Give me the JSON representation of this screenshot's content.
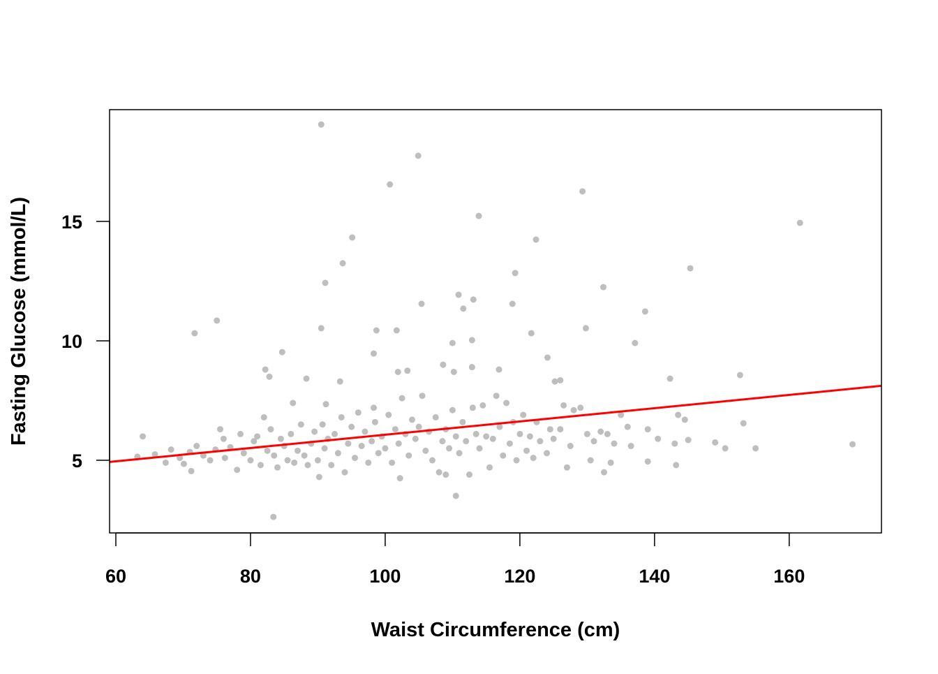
{
  "chart_data": {
    "type": "scatter",
    "title": "",
    "xlabel": "Waist Circumference (cm)",
    "ylabel": "Fasting Glucose (mmol/L)",
    "xlim": [
      59.07,
      173.7
    ],
    "ylim": [
      1.96,
      19.68
    ],
    "xticks": [
      60,
      80,
      100,
      120,
      140,
      160
    ],
    "yticks": [
      5,
      10,
      15
    ],
    "grid": false,
    "point_color": "#bebebe",
    "line_color": "#ff0000",
    "regression_line": {
      "intercept": 3.29,
      "slope": 0.0278
    },
    "points": [
      [
        90.5,
        19.06
      ],
      [
        104.9,
        17.75
      ],
      [
        100.7,
        16.55
      ],
      [
        129.3,
        16.26
      ],
      [
        113.9,
        15.23
      ],
      [
        161.6,
        14.94
      ],
      [
        95.1,
        14.33
      ],
      [
        122.4,
        14.24
      ],
      [
        93.7,
        13.25
      ],
      [
        145.3,
        13.04
      ],
      [
        119.3,
        12.84
      ],
      [
        91.1,
        12.43
      ],
      [
        132.4,
        12.25
      ],
      [
        110.9,
        11.93
      ],
      [
        113.1,
        11.73
      ],
      [
        105.4,
        11.55
      ],
      [
        118.9,
        11.55
      ],
      [
        111.6,
        11.35
      ],
      [
        138.6,
        11.23
      ],
      [
        75.0,
        10.85
      ],
      [
        71.7,
        10.32
      ],
      [
        90.5,
        10.53
      ],
      [
        98.7,
        10.44
      ],
      [
        101.7,
        10.44
      ],
      [
        129.8,
        10.53
      ],
      [
        121.7,
        10.32
      ],
      [
        110.0,
        9.91
      ],
      [
        112.9,
        10.03
      ],
      [
        137.1,
        9.91
      ],
      [
        84.7,
        9.53
      ],
      [
        98.3,
        9.47
      ],
      [
        124.1,
        9.3
      ],
      [
        82.2,
        8.8
      ],
      [
        108.6,
        9.0
      ],
      [
        112.9,
        8.9
      ],
      [
        101.9,
        8.7
      ],
      [
        103.3,
        8.75
      ],
      [
        110.2,
        8.7
      ],
      [
        116.9,
        8.8
      ],
      [
        88.3,
        8.42
      ],
      [
        142.3,
        8.42
      ],
      [
        152.7,
        8.57
      ],
      [
        125.2,
        8.3
      ],
      [
        126.0,
        8.35
      ],
      [
        93.3,
        8.3
      ],
      [
        82.8,
        8.5
      ],
      [
        83.4,
        2.63
      ],
      [
        110.5,
        3.51
      ],
      [
        102.2,
        4.25
      ],
      [
        90.2,
        4.3
      ],
      [
        169.4,
        5.67
      ],
      [
        63.2,
        5.15
      ],
      [
        64,
        6.0
      ],
      [
        65.8,
        5.25
      ],
      [
        67.4,
        4.9
      ],
      [
        68.2,
        5.45
      ],
      [
        69.5,
        5.1
      ],
      [
        70.1,
        4.85
      ],
      [
        71,
        5.35
      ],
      [
        71.2,
        4.55
      ],
      [
        72,
        5.6
      ],
      [
        73,
        5.2
      ],
      [
        74,
        5.0
      ],
      [
        74.8,
        5.45
      ],
      [
        75.5,
        6.3
      ],
      [
        76,
        5.9
      ],
      [
        76.2,
        5.1
      ],
      [
        77,
        5.55
      ],
      [
        78,
        4.6
      ],
      [
        78.5,
        6.1
      ],
      [
        79,
        5.3
      ],
      [
        80,
        5.0
      ],
      [
        80.5,
        5.8
      ],
      [
        81,
        6.0
      ],
      [
        81.5,
        4.8
      ],
      [
        82,
        6.8
      ],
      [
        82.5,
        5.4
      ],
      [
        83,
        6.3
      ],
      [
        83.5,
        5.2
      ],
      [
        84,
        4.7
      ],
      [
        84.5,
        5.9
      ],
      [
        85,
        5.6
      ],
      [
        85.5,
        5.0
      ],
      [
        86,
        6.1
      ],
      [
        86.3,
        7.4
      ],
      [
        86.5,
        4.9
      ],
      [
        87,
        5.4
      ],
      [
        87.5,
        6.5
      ],
      [
        88,
        5.2
      ],
      [
        88.5,
        4.8
      ],
      [
        89,
        5.7
      ],
      [
        89.5,
        6.2
      ],
      [
        90,
        5.0
      ],
      [
        90.7,
        6.5
      ],
      [
        91,
        5.5
      ],
      [
        91.2,
        7.35
      ],
      [
        91.5,
        5.9
      ],
      [
        92,
        4.8
      ],
      [
        92.5,
        6.1
      ],
      [
        93,
        5.3
      ],
      [
        93.5,
        6.8
      ],
      [
        94,
        4.5
      ],
      [
        94.5,
        5.7
      ],
      [
        95,
        6.4
      ],
      [
        95.5,
        5.1
      ],
      [
        96,
        7.0
      ],
      [
        96.5,
        5.6
      ],
      [
        97,
        6.2
      ],
      [
        97.5,
        4.9
      ],
      [
        98,
        5.8
      ],
      [
        98.3,
        7.2
      ],
      [
        98.5,
        6.6
      ],
      [
        99,
        5.3
      ],
      [
        99.5,
        6.0
      ],
      [
        100,
        5.5
      ],
      [
        100.5,
        6.9
      ],
      [
        101,
        4.9
      ],
      [
        101.5,
        6.3
      ],
      [
        102,
        5.7
      ],
      [
        102.5,
        7.6
      ],
      [
        103,
        6.1
      ],
      [
        103.5,
        5.2
      ],
      [
        104,
        6.7
      ],
      [
        104.5,
        5.9
      ],
      [
        105,
        6.4
      ],
      [
        105.5,
        7.7
      ],
      [
        106,
        5.4
      ],
      [
        106.5,
        6.2
      ],
      [
        107,
        5.0
      ],
      [
        107.5,
        6.8
      ],
      [
        108,
        4.5
      ],
      [
        108.5,
        5.8
      ],
      [
        109,
        6.3
      ],
      [
        109,
        4.4
      ],
      [
        109.5,
        5.5
      ],
      [
        110,
        7.1
      ],
      [
        110.5,
        6.0
      ],
      [
        111,
        5.3
      ],
      [
        111.5,
        6.6
      ],
      [
        112,
        5.8
      ],
      [
        112.5,
        4.4
      ],
      [
        113,
        7.2
      ],
      [
        113.5,
        6.1
      ],
      [
        114,
        5.5
      ],
      [
        114.5,
        7.3
      ],
      [
        115,
        6.0
      ],
      [
        115.5,
        4.7
      ],
      [
        116,
        5.9
      ],
      [
        116.5,
        7.7
      ],
      [
        117,
        6.4
      ],
      [
        117.5,
        5.2
      ],
      [
        118,
        7.4
      ],
      [
        118.5,
        5.7
      ],
      [
        119,
        6.6
      ],
      [
        119.5,
        5.0
      ],
      [
        120,
        6.1
      ],
      [
        120.5,
        6.9
      ],
      [
        121,
        5.4
      ],
      [
        121.5,
        6.0
      ],
      [
        122,
        5.1
      ],
      [
        122.5,
        6.6
      ],
      [
        123,
        5.8
      ],
      [
        124,
        5.3
      ],
      [
        124.5,
        6.3
      ],
      [
        125,
        5.9
      ],
      [
        126,
        6.3
      ],
      [
        126.5,
        7.3
      ],
      [
        127,
        4.7
      ],
      [
        127.5,
        5.6
      ],
      [
        128,
        7.1
      ],
      [
        129,
        7.2
      ],
      [
        130,
        6.1
      ],
      [
        130.5,
        5.0
      ],
      [
        131,
        5.8
      ],
      [
        132,
        6.2
      ],
      [
        132.5,
        4.5
      ],
      [
        133,
        6.1
      ],
      [
        133.5,
        4.9
      ],
      [
        134,
        5.7
      ],
      [
        135,
        6.9
      ],
      [
        136,
        6.4
      ],
      [
        136.5,
        5.6
      ],
      [
        139,
        6.3
      ],
      [
        139,
        4.95
      ],
      [
        140.5,
        5.9
      ],
      [
        143,
        5.7
      ],
      [
        143.2,
        4.8
      ],
      [
        143.5,
        6.9
      ],
      [
        144.5,
        6.7
      ],
      [
        145,
        5.85
      ],
      [
        149,
        5.75
      ],
      [
        150.5,
        5.5
      ],
      [
        153.2,
        6.55
      ],
      [
        155,
        5.5
      ]
    ]
  }
}
